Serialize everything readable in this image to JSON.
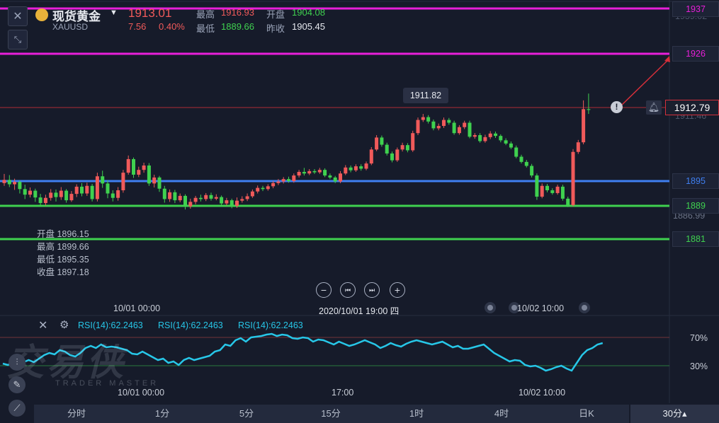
{
  "header": {
    "name": "现货黄金",
    "symbol": "XAUUSD",
    "price": "1913.01",
    "change": "7.56",
    "change_pct": "0.40%",
    "high_label": "最高",
    "high": "1916.93",
    "open_label": "开盘",
    "open": "1904.08",
    "low_label": "最低",
    "low": "1889.66",
    "prev_close_label": "昨收",
    "prev_close": "1905.45"
  },
  "crosshair_info": {
    "open": "开盘 1896.15",
    "high": "最高 1899.66",
    "low": "最低 1895.35",
    "close": "收盘 1897.18"
  },
  "price_levels": {
    "l1937": "1937",
    "l1926": "1926",
    "l1895": "1895",
    "l1889": "1889",
    "l1881": "1881",
    "current": "1912.79",
    "peak_tooltip": "1911.82",
    "faded_top": "1939.02",
    "faded_mid": "1911.46",
    "faded_low": "1886.99"
  },
  "controls": {
    "zoom_out": "−",
    "prev": "⏮",
    "next": "⏭",
    "zoom_in": "+",
    "crosshair_time": "2020/10/01 19:00 四"
  },
  "time_axis": {
    "main_left": "10/01 00:00",
    "main_right": "10/02 10:00",
    "rsi_left": "10/01 00:00",
    "rsi_mid": "17:00",
    "rsi_right": "10/02 10:00"
  },
  "rsi": {
    "label1": "RSI(14):62.2463",
    "label2": "RSI(14):62.2463",
    "label3": "RSI(14):62.2463",
    "upper": "70%",
    "lower": "30%",
    "values": [
      33,
      31,
      36,
      32,
      35,
      38,
      35,
      40,
      45,
      48,
      46,
      52,
      50,
      45,
      43,
      48,
      55,
      58,
      55,
      60,
      56,
      57,
      56,
      54,
      52,
      47,
      46,
      50,
      46,
      42,
      38,
      40,
      34,
      36,
      31,
      38,
      41,
      38,
      40,
      42,
      44,
      50,
      52,
      60,
      58,
      66,
      69,
      64,
      70,
      71,
      72,
      74,
      75,
      72,
      74,
      73,
      69,
      68,
      70,
      69,
      64,
      67,
      66,
      63,
      60,
      64,
      61,
      58,
      60,
      63,
      66,
      63,
      60,
      55,
      58,
      62,
      59,
      57,
      61,
      64,
      66,
      64,
      62,
      60,
      62,
      64,
      60,
      56,
      58,
      54,
      54,
      56,
      58,
      60,
      54,
      48,
      44,
      40,
      36,
      38,
      37,
      31,
      29,
      30,
      27,
      23,
      25,
      28,
      30,
      26,
      23,
      34,
      45,
      52,
      55,
      60,
      62
    ]
  },
  "periods": [
    "分时",
    "1分",
    "5分",
    "15分",
    "1时",
    "4时",
    "日K",
    "30分▴"
  ],
  "watermark": {
    "logo": "交易侠",
    "sub": "TRADER MASTER"
  },
  "colors": {
    "up": "#f05a5a",
    "down": "#3fd14f",
    "magenta": "#e81fd9",
    "blue": "#3f7ff0",
    "green_line": "#3fd14f",
    "rsi": "#27c7e8",
    "accent_red": "#d42f3a"
  },
  "candles": [
    [
      1894.5,
      1895.3,
      1896.8,
      1893.8
    ],
    [
      1895.3,
      1894.2,
      1896.5,
      1893.5
    ],
    [
      1894.2,
      1894.8,
      1895.6,
      1892.8
    ],
    [
      1894.8,
      1893.0,
      1895.2,
      1891.9
    ],
    [
      1893.0,
      1891.6,
      1894.1,
      1890.5
    ],
    [
      1891.6,
      1892.6,
      1893.4,
      1890.9
    ],
    [
      1892.6,
      1890.9,
      1893.1,
      1889.8
    ],
    [
      1890.9,
      1889.5,
      1891.8,
      1888.8
    ],
    [
      1889.5,
      1890.8,
      1891.6,
      1888.9
    ],
    [
      1890.8,
      1892.1,
      1893.0,
      1890.1
    ],
    [
      1892.1,
      1891.0,
      1892.9,
      1889.9
    ],
    [
      1891.0,
      1892.6,
      1893.5,
      1890.3
    ],
    [
      1892.6,
      1890.2,
      1893.0,
      1889.6
    ],
    [
      1890.2,
      1891.8,
      1892.5,
      1889.8
    ],
    [
      1891.8,
      1893.6,
      1894.2,
      1891.0
    ],
    [
      1893.6,
      1891.9,
      1894.5,
      1891.2
    ],
    [
      1891.9,
      1893.8,
      1894.6,
      1891.3
    ],
    [
      1893.8,
      1890.5,
      1894.3,
      1889.9
    ],
    [
      1890.5,
      1896.2,
      1897.1,
      1889.9
    ],
    [
      1896.2,
      1894.4,
      1897.6,
      1893.3
    ],
    [
      1894.4,
      1891.9,
      1895.2,
      1890.7
    ],
    [
      1891.9,
      1890.8,
      1892.7,
      1889.9
    ],
    [
      1890.8,
      1892.7,
      1893.5,
      1890.1
    ],
    [
      1892.7,
      1897.1,
      1897.8,
      1892.1
    ],
    [
      1897.1,
      1900.5,
      1901.4,
      1896.6
    ],
    [
      1900.5,
      1896.6,
      1900.9,
      1895.8
    ],
    [
      1896.6,
      1897.8,
      1898.6,
      1896.0
    ],
    [
      1897.8,
      1898.9,
      1899.6,
      1897.1
    ],
    [
      1898.9,
      1894.4,
      1899.5,
      1893.8
    ],
    [
      1894.4,
      1895.9,
      1896.6,
      1893.4
    ],
    [
      1895.9,
      1893.1,
      1896.3,
      1892.3
    ],
    [
      1893.1,
      1890.5,
      1893.8,
      1889.6
    ],
    [
      1890.5,
      1892.2,
      1892.9,
      1889.8
    ],
    [
      1892.2,
      1890.2,
      1892.8,
      1889.5
    ],
    [
      1890.2,
      1891.3,
      1891.9,
      1889.7
    ],
    [
      1891.3,
      1888.7,
      1891.7,
      1887.9
    ],
    [
      1888.7,
      1889.8,
      1890.6,
      1888.1
    ],
    [
      1889.8,
      1890.8,
      1891.3,
      1889.2
    ],
    [
      1890.8,
      1890.5,
      1891.6,
      1889.9
    ],
    [
      1890.5,
      1891.5,
      1892.0,
      1890.0
    ],
    [
      1891.5,
      1890.6,
      1892.1,
      1890.1
    ],
    [
      1890.6,
      1891.0,
      1891.7,
      1890.2
    ],
    [
      1891.0,
      1889.4,
      1891.4,
      1888.7
    ],
    [
      1889.4,
      1890.2,
      1890.8,
      1888.9
    ],
    [
      1890.2,
      1888.8,
      1890.6,
      1888.2
    ],
    [
      1888.8,
      1890.1,
      1890.9,
      1888.3
    ],
    [
      1890.1,
      1890.5,
      1891.2,
      1889.6
    ],
    [
      1890.5,
      1891.2,
      1891.9,
      1890.0
    ],
    [
      1891.2,
      1892.4,
      1892.9,
      1890.8
    ],
    [
      1892.4,
      1893.3,
      1893.9,
      1891.9
    ],
    [
      1893.3,
      1893.0,
      1893.8,
      1892.5
    ],
    [
      1893.0,
      1893.7,
      1894.2,
      1892.6
    ],
    [
      1893.7,
      1894.5,
      1895.0,
      1893.2
    ],
    [
      1894.5,
      1894.9,
      1895.5,
      1894.0
    ],
    [
      1894.9,
      1895.5,
      1896.0,
      1894.4
    ],
    [
      1895.5,
      1895.0,
      1896.1,
      1894.6
    ],
    [
      1895.0,
      1896.4,
      1896.9,
      1894.6
    ],
    [
      1896.4,
      1897.3,
      1897.8,
      1895.9
    ],
    [
      1897.3,
      1896.9,
      1898.3,
      1896.4
    ],
    [
      1896.9,
      1897.5,
      1898.0,
      1896.5
    ],
    [
      1897.5,
      1897.2,
      1898.0,
      1896.8
    ],
    [
      1897.2,
      1897.8,
      1898.3,
      1896.8
    ],
    [
      1897.8,
      1896.4,
      1898.2,
      1896.0
    ],
    [
      1896.4,
      1895.9,
      1896.9,
      1895.5
    ],
    [
      1895.9,
      1894.9,
      1896.3,
      1894.5
    ],
    [
      1894.9,
      1896.9,
      1897.5,
      1894.5
    ],
    [
      1896.9,
      1898.4,
      1899.0,
      1896.5
    ],
    [
      1898.4,
      1897.7,
      1898.9,
      1897.2
    ],
    [
      1897.7,
      1898.7,
      1899.2,
      1897.3
    ],
    [
      1898.7,
      1898.1,
      1899.2,
      1897.6
    ],
    [
      1898.1,
      1899.4,
      1899.9,
      1897.7
    ],
    [
      1899.4,
      1902.9,
      1903.5,
      1899.0
    ],
    [
      1902.9,
      1905.9,
      1906.5,
      1902.5
    ],
    [
      1905.9,
      1904.1,
      1906.4,
      1903.6
    ],
    [
      1904.1,
      1901.9,
      1904.6,
      1901.4
    ],
    [
      1901.9,
      1900.2,
      1902.4,
      1899.7
    ],
    [
      1900.2,
      1902.9,
      1903.4,
      1899.8
    ],
    [
      1902.9,
      1904.0,
      1904.6,
      1902.4
    ],
    [
      1904.0,
      1902.7,
      1904.5,
      1902.2
    ],
    [
      1902.7,
      1907.0,
      1907.6,
      1902.3
    ],
    [
      1907.0,
      1910.3,
      1910.9,
      1906.5
    ],
    [
      1910.3,
      1911.0,
      1911.8,
      1909.8
    ],
    [
      1911.0,
      1909.9,
      1911.5,
      1909.4
    ],
    [
      1909.9,
      1908.2,
      1910.4,
      1907.7
    ],
    [
      1908.2,
      1908.8,
      1909.4,
      1907.7
    ],
    [
      1908.8,
      1910.3,
      1910.9,
      1908.3
    ],
    [
      1910.3,
      1909.6,
      1910.8,
      1909.1
    ],
    [
      1909.6,
      1907.0,
      1910.1,
      1906.6
    ],
    [
      1907.0,
      1908.5,
      1909.0,
      1906.6
    ],
    [
      1908.5,
      1909.6,
      1910.1,
      1908.0
    ],
    [
      1909.6,
      1906.1,
      1910.1,
      1905.7
    ],
    [
      1906.1,
      1906.5,
      1907.0,
      1905.6
    ],
    [
      1906.5,
      1905.0,
      1907.0,
      1904.6
    ],
    [
      1905.0,
      1906.0,
      1906.6,
      1904.6
    ],
    [
      1906.0,
      1906.9,
      1907.5,
      1905.5
    ],
    [
      1906.9,
      1906.3,
      1907.4,
      1905.8
    ],
    [
      1906.3,
      1905.2,
      1906.7,
      1904.7
    ],
    [
      1905.2,
      1904.4,
      1905.7,
      1904.0
    ],
    [
      1904.4,
      1903.4,
      1904.9,
      1903.0
    ],
    [
      1903.4,
      1901.1,
      1903.9,
      1900.7
    ],
    [
      1901.1,
      1899.8,
      1901.6,
      1899.4
    ],
    [
      1899.8,
      1898.8,
      1900.3,
      1898.4
    ],
    [
      1898.8,
      1896.4,
      1899.3,
      1895.9
    ],
    [
      1896.4,
      1891.1,
      1896.9,
      1890.3
    ],
    [
      1891.1,
      1893.8,
      1894.4,
      1890.7
    ],
    [
      1893.8,
      1892.7,
      1894.3,
      1892.2
    ],
    [
      1892.7,
      1892.0,
      1893.2,
      1891.6
    ],
    [
      1892.0,
      1893.6,
      1894.1,
      1891.6
    ],
    [
      1893.6,
      1890.6,
      1894.1,
      1890.1
    ],
    [
      1890.6,
      1889.0,
      1891.1,
      1888.5
    ],
    [
      1889.0,
      1902.3,
      1903.0,
      1888.6
    ],
    [
      1902.3,
      1904.7,
      1905.3,
      1901.8
    ],
    [
      1904.7,
      1913.0,
      1915.2,
      1904.2
    ],
    [
      1913.0,
      1912.8,
      1916.9,
      1911.8
    ]
  ]
}
